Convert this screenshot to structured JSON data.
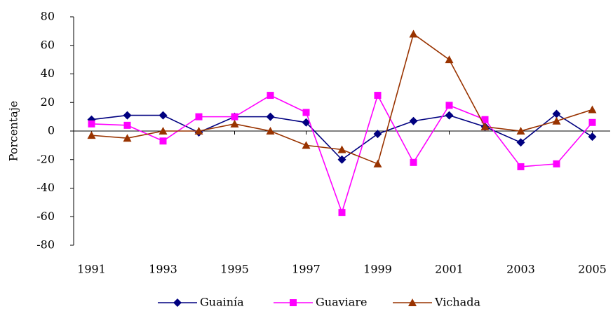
{
  "chart_data": {
    "type": "line",
    "y_label": "Porcentaje",
    "x": [
      1991,
      1992,
      1993,
      1994,
      1995,
      1996,
      1997,
      1998,
      1999,
      2000,
      2001,
      2002,
      2003,
      2004,
      2005
    ],
    "series": [
      {
        "name": "Guainía",
        "color": "#000080",
        "marker": "diamond",
        "values": [
          8,
          11,
          11,
          -1,
          10,
          10,
          6,
          -20,
          -2,
          7,
          11,
          3,
          -8,
          12,
          -4
        ]
      },
      {
        "name": "Guaviare",
        "color": "#ff00ff",
        "marker": "square",
        "values": [
          5,
          4,
          -7,
          10,
          10,
          25,
          13,
          -57,
          25,
          -22,
          18,
          8,
          -25,
          -23,
          6
        ]
      },
      {
        "name": "Vichada",
        "color": "#993300",
        "marker": "triangle",
        "values": [
          -3,
          -5,
          0,
          0,
          5,
          0,
          -10,
          -13,
          -23,
          68,
          50,
          3,
          0,
          7,
          15
        ]
      }
    ],
    "xlim": [
      1990.5,
      2005.5
    ],
    "xticks": [
      1991,
      1993,
      1995,
      1997,
      1999,
      2001,
      2003,
      2005
    ],
    "ylim": [
      -80,
      80
    ],
    "yticks": [
      -80,
      -60,
      -40,
      -20,
      0,
      20,
      40,
      60,
      80
    ],
    "grid": false,
    "legend": "bottom"
  }
}
